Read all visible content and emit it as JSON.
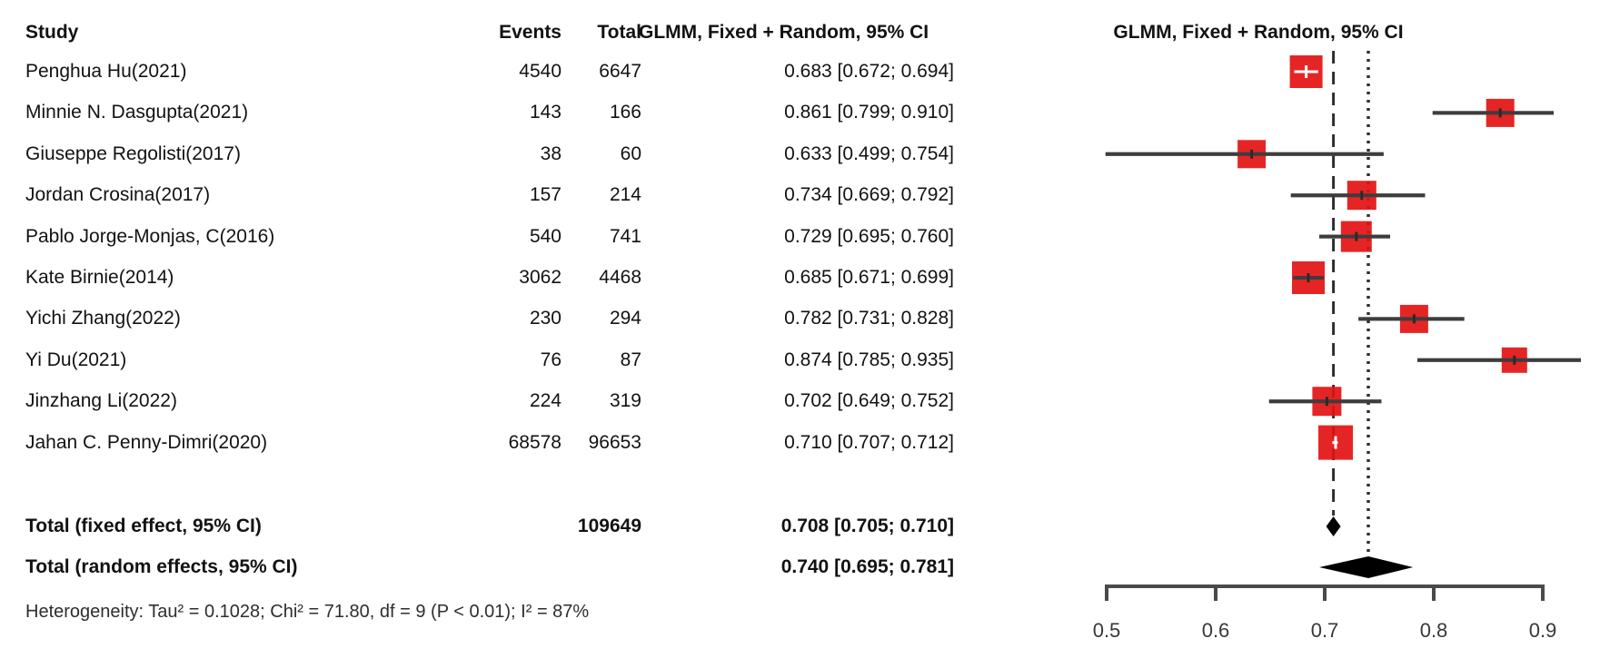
{
  "headers": {
    "study": "Study",
    "events": "Events",
    "total": "Total",
    "ci": "GLMM, Fixed + Random, 95% CI",
    "plot": "GLMM, Fixed + Random, 95% CI"
  },
  "chart_data": {
    "type": "forest",
    "x_axis": {
      "min": 0.5,
      "max": 0.9,
      "ticks": [
        0.5,
        0.6,
        0.7,
        0.8,
        0.9
      ],
      "tick_labels": [
        "0.5",
        "0.6",
        "0.7",
        "0.8",
        "0.9"
      ]
    },
    "reference_lines": [
      {
        "name": "fixed-effect",
        "style": "dashed",
        "value": 0.708
      },
      {
        "name": "random-effects",
        "style": "dotted",
        "value": 0.74
      }
    ],
    "studies": [
      {
        "name": "Penghua Hu(2021)",
        "events": "4540",
        "total": "6647",
        "estimate": 0.683,
        "lower": 0.672,
        "upper": 0.694,
        "ci_label": "0.683 [0.672; 0.694]",
        "square": 36,
        "narrow_ci": true
      },
      {
        "name": "Minnie N. Dasgupta(2021)",
        "events": "143",
        "total": "166",
        "estimate": 0.861,
        "lower": 0.799,
        "upper": 0.91,
        "ci_label": "0.861 [0.799; 0.910]",
        "square": 31,
        "narrow_ci": false
      },
      {
        "name": "Giuseppe Regolisti(2017)",
        "events": "38",
        "total": "60",
        "estimate": 0.633,
        "lower": 0.499,
        "upper": 0.754,
        "ci_label": "0.633 [0.499; 0.754]",
        "square": 31,
        "narrow_ci": false
      },
      {
        "name": "Jordan Crosina(2017)",
        "events": "157",
        "total": "214",
        "estimate": 0.734,
        "lower": 0.669,
        "upper": 0.792,
        "ci_label": "0.734 [0.669; 0.792]",
        "square": 32,
        "narrow_ci": false
      },
      {
        "name": "Pablo Jorge-Monjas, C(2016)",
        "events": "540",
        "total": "741",
        "estimate": 0.729,
        "lower": 0.695,
        "upper": 0.76,
        "ci_label": "0.729 [0.695; 0.760]",
        "square": 34,
        "narrow_ci": false
      },
      {
        "name": "Kate Birnie(2014)",
        "events": "3062",
        "total": "4468",
        "estimate": 0.685,
        "lower": 0.671,
        "upper": 0.699,
        "ci_label": "0.685 [0.671; 0.699]",
        "square": 36,
        "narrow_ci": false
      },
      {
        "name": "Yichi Zhang(2022)",
        "events": "230",
        "total": "294",
        "estimate": 0.782,
        "lower": 0.731,
        "upper": 0.828,
        "ci_label": "0.782 [0.731; 0.828]",
        "square": 31,
        "narrow_ci": false
      },
      {
        "name": "Yi Du(2021)",
        "events": "76",
        "total": "87",
        "estimate": 0.874,
        "lower": 0.785,
        "upper": 0.935,
        "ci_label": "0.874 [0.785; 0.935]",
        "square": 28,
        "narrow_ci": false
      },
      {
        "name": "Jinzhang Li(2022)",
        "events": "224",
        "total": "319",
        "estimate": 0.702,
        "lower": 0.649,
        "upper": 0.752,
        "ci_label": "0.702 [0.649; 0.752]",
        "square": 32,
        "narrow_ci": false
      },
      {
        "name": "Jahan C. Penny-Dimri(2020)",
        "events": "68578",
        "total": "96653",
        "estimate": 0.71,
        "lower": 0.707,
        "upper": 0.712,
        "ci_label": "0.710 [0.707; 0.712]",
        "square": 38,
        "narrow_ci": true
      }
    ],
    "totals": [
      {
        "name": "Total (fixed effect, 95% CI)",
        "total": "109649",
        "estimate": 0.708,
        "lower": 0.705,
        "upper": 0.71,
        "ci_label": "0.708 [0.705; 0.710]"
      },
      {
        "name": "Total (random effects, 95% CI)",
        "total": "",
        "estimate": 0.74,
        "lower": 0.695,
        "upper": 0.781,
        "ci_label": "0.740 [0.695; 0.781]"
      }
    ],
    "heterogeneity": "Heterogeneity: Tau² = 0.1028; Chi² = 71.80, df = 9 (P < 0.01); I² = 87%",
    "colors": {
      "square": "#e31212",
      "ci_line": "#4a4a4a",
      "reference_line": "#2f2f2f",
      "diamond": "#000000",
      "axis": "#4a4a4a",
      "axis_label": "#383838",
      "text": "#121212"
    }
  }
}
